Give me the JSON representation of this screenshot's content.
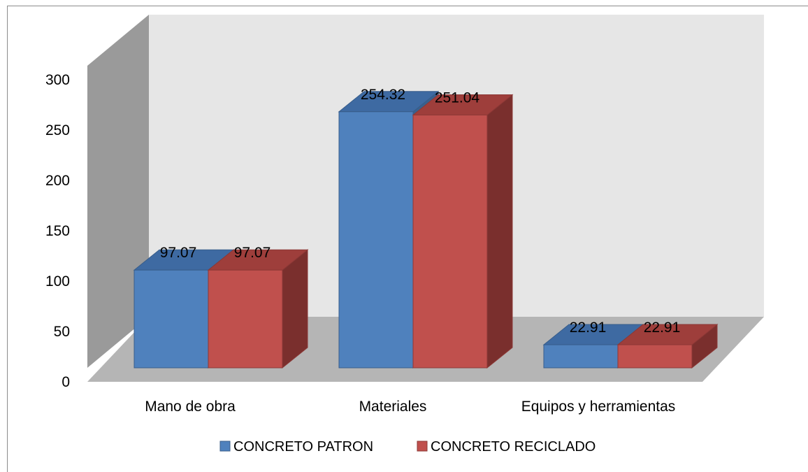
{
  "chart_data": {
    "type": "bar",
    "title": "",
    "xlabel": "",
    "ylabel": "",
    "categories": [
      "Mano de obra",
      "Materiales",
      "Equipos y herramientas"
    ],
    "series": [
      {
        "name": "CONCRETO PATRON",
        "values": [
          97.07,
          254.32,
          22.91
        ],
        "labels": [
          "97.07",
          "254.32",
          "22.91"
        ]
      },
      {
        "name": "CONCRETO RECICLADO",
        "values": [
          97.07,
          251.04,
          22.91
        ],
        "labels": [
          "97.07",
          "251.04",
          "22.91"
        ]
      }
    ],
    "ylim": [
      0,
      300
    ],
    "yticks": [
      "0",
      "50",
      "100",
      "150",
      "200",
      "250",
      "300"
    ],
    "grid": false,
    "three_d": true,
    "legend_position": "bottom",
    "colors": {
      "series_fill": [
        "#4f81bd",
        "#c0504d"
      ],
      "series_top": [
        "#3e6aa2",
        "#9e3e3b"
      ],
      "series_side": [
        "#38618f",
        "#7a2f2d"
      ],
      "series_stroke": [
        "#385d8a",
        "#8c3836"
      ],
      "back_wall": "#e6e6e6",
      "side_wall": "#9a9a9a",
      "floor": "#b5b5b5"
    }
  }
}
